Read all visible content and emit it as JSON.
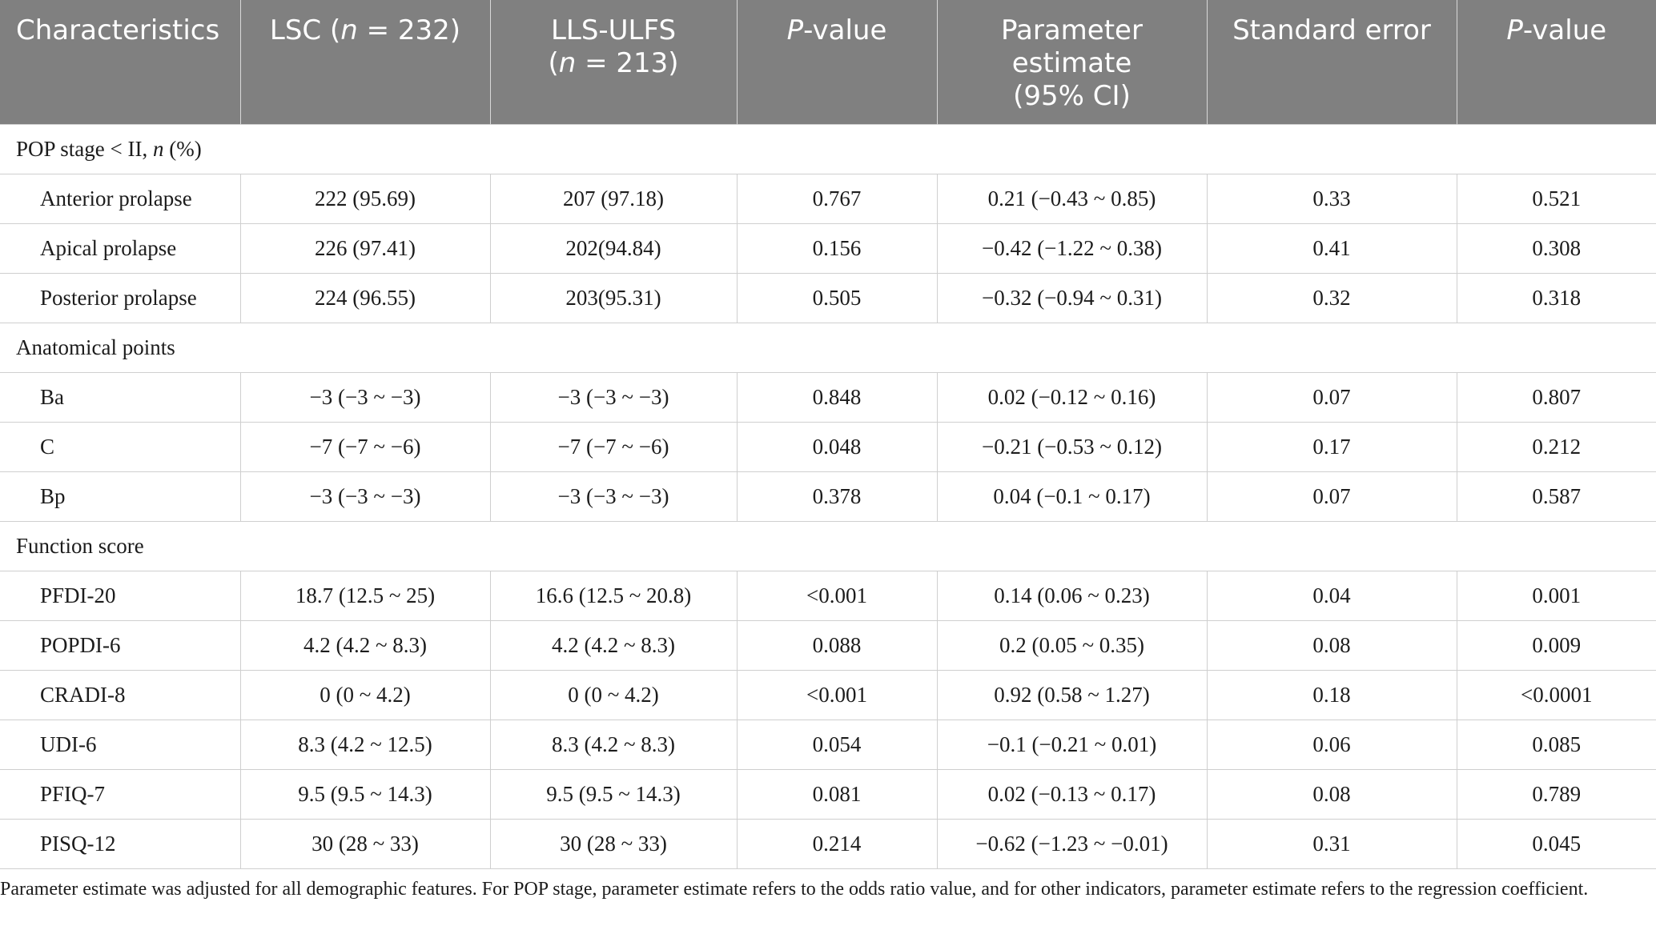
{
  "headers": {
    "characteristics": "Characteristics",
    "lsc_name": "LSC",
    "lsc_n_prefix": "(",
    "lsc_n_var": "n",
    "lsc_n_value": " = 232)",
    "lls_name": "LLS-ULFS",
    "lls_n_prefix": "(",
    "lls_n_var": "n",
    "lls_n_value": " = 213)",
    "pvalue1_var": "P",
    "pvalue1_rest": "-value",
    "param_line1": "Parameter",
    "param_line2": "estimate",
    "param_line3": "(95% CI)",
    "standard_error": "Standard error",
    "pvalue2_var": "P",
    "pvalue2_rest": "-value"
  },
  "sections": [
    {
      "title": "POP stage < II, ",
      "title_var": "n",
      "title_suffix": " (%)",
      "rows": [
        {
          "label": "Anterior prolapse",
          "lsc": "222 (95.69)",
          "lls": "207 (97.18)",
          "p1": "0.767",
          "param": "0.21 (−0.43 ~ 0.85)",
          "se": "0.33",
          "p2": "0.521"
        },
        {
          "label": "Apical prolapse",
          "lsc": "226 (97.41)",
          "lls": "202(94.84)",
          "p1": "0.156",
          "param": "−0.42 (−1.22 ~ 0.38)",
          "se": "0.41",
          "p2": "0.308"
        },
        {
          "label": "Posterior prolapse",
          "lsc": "224 (96.55)",
          "lls": "203(95.31)",
          "p1": "0.505",
          "param": "−0.32 (−0.94 ~ 0.31)",
          "se": "0.32",
          "p2": "0.318"
        }
      ]
    },
    {
      "title": "Anatomical points",
      "title_var": "",
      "title_suffix": "",
      "rows": [
        {
          "label": "Ba",
          "lsc": "−3 (−3 ~ −3)",
          "lls": "−3 (−3 ~ −3)",
          "p1": "0.848",
          "param": "0.02 (−0.12 ~ 0.16)",
          "se": "0.07",
          "p2": "0.807"
        },
        {
          "label": "C",
          "lsc": "−7 (−7 ~ −6)",
          "lls": "−7 (−7 ~ −6)",
          "p1": "0.048",
          "param": "−0.21 (−0.53 ~ 0.12)",
          "se": "0.17",
          "p2": "0.212"
        },
        {
          "label": "Bp",
          "lsc": "−3 (−3 ~ −3)",
          "lls": "−3 (−3 ~ −3)",
          "p1": "0.378",
          "param": "0.04 (−0.1 ~ 0.17)",
          "se": "0.07",
          "p2": "0.587"
        }
      ]
    },
    {
      "title": "Function score",
      "title_var": "",
      "title_suffix": "",
      "rows": [
        {
          "label": "PFDI-20",
          "lsc": "18.7 (12.5 ~ 25)",
          "lls": "16.6 (12.5 ~ 20.8)",
          "p1": "<0.001",
          "param": "0.14 (0.06 ~ 0.23)",
          "se": "0.04",
          "p2": "0.001"
        },
        {
          "label": "POPDI-6",
          "lsc": "4.2 (4.2 ~ 8.3)",
          "lls": "4.2 (4.2 ~ 8.3)",
          "p1": "0.088",
          "param": "0.2 (0.05 ~ 0.35)",
          "se": "0.08",
          "p2": "0.009"
        },
        {
          "label": "CRADI-8",
          "lsc": "0 (0 ~ 4.2)",
          "lls": "0 (0 ~ 4.2)",
          "p1": "<0.001",
          "param": "0.92 (0.58 ~ 1.27)",
          "se": "0.18",
          "p2": "<0.0001"
        },
        {
          "label": "UDI-6",
          "lsc": "8.3 (4.2 ~ 12.5)",
          "lls": "8.3 (4.2 ~ 8.3)",
          "p1": "0.054",
          "param": "−0.1 (−0.21 ~ 0.01)",
          "se": "0.06",
          "p2": "0.085"
        },
        {
          "label": "PFIQ-7",
          "lsc": "9.5 (9.5 ~ 14.3)",
          "lls": "9.5 (9.5 ~ 14.3)",
          "p1": "0.081",
          "param": "0.02 (−0.13 ~ 0.17)",
          "se": "0.08",
          "p2": "0.789"
        },
        {
          "label": "PISQ-12",
          "lsc": "30 (28 ~ 33)",
          "lls": "30 (28 ~ 33)",
          "p1": "0.214",
          "param": "−0.62 (−1.23 ~ −0.01)",
          "se": "0.31",
          "p2": "0.045"
        }
      ]
    }
  ],
  "footnote": "Parameter estimate was adjusted for all demographic features. For POP stage, parameter estimate refers to the odds ratio value, and for other indicators, parameter estimate refers to the regression coefficient."
}
